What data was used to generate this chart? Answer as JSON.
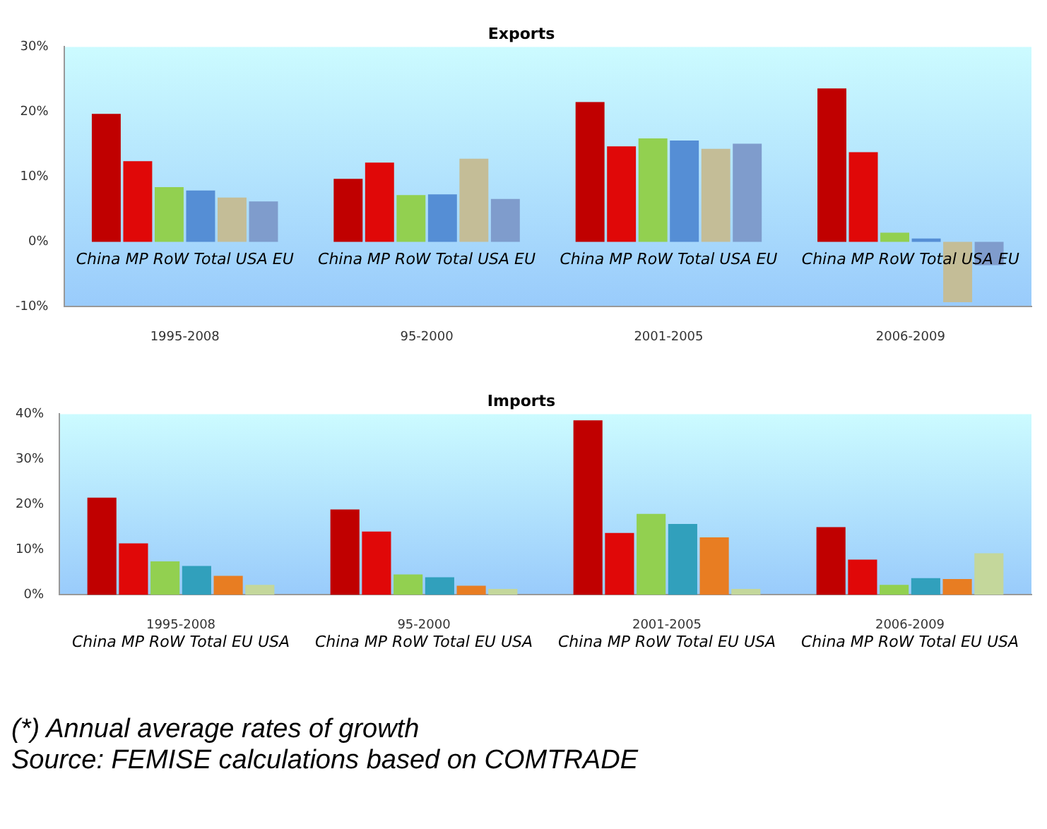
{
  "chart_data": [
    {
      "type": "bar",
      "title": "Exports",
      "categories": [
        "1995-2008",
        "95-2000",
        "2001-2005",
        "2006-2009"
      ],
      "series": [
        {
          "name": "China",
          "color": "#c00000",
          "values": [
            19.7,
            9.7,
            21.5,
            23.6
          ]
        },
        {
          "name": "MP",
          "color": "#e00808",
          "values": [
            12.4,
            12.2,
            14.7,
            13.8
          ]
        },
        {
          "name": "RoW",
          "color": "#92d050",
          "values": [
            8.4,
            7.2,
            15.9,
            1.4
          ]
        },
        {
          "name": "Total",
          "color": "#558ed5",
          "values": [
            7.9,
            7.3,
            15.6,
            0.5
          ]
        },
        {
          "name": "USA",
          "color": "#c4bd97",
          "values": [
            6.8,
            12.8,
            14.3,
            -9.3
          ]
        },
        {
          "name": "EU",
          "color": "#7f9ccc",
          "values": [
            6.2,
            6.6,
            15.1,
            -3.6
          ]
        }
      ],
      "ylim": [
        -10,
        30
      ],
      "yticks": [
        {
          "value": -10,
          "label": "-10%"
        },
        {
          "value": 0,
          "label": "0%"
        },
        {
          "value": 10,
          "label": "10%"
        },
        {
          "value": 20,
          "label": "20%"
        },
        {
          "value": 30,
          "label": "30%"
        }
      ],
      "grid": false,
      "legend": false
    },
    {
      "type": "bar",
      "title": "Imports",
      "categories": [
        "1995-2008",
        "95-2000",
        "2001-2005",
        "2006-2009"
      ],
      "series": [
        {
          "name": "China",
          "color": "#c00000",
          "values": [
            21.5,
            18.9,
            38.6,
            15.0
          ]
        },
        {
          "name": "MP",
          "color": "#e00808",
          "values": [
            11.4,
            14.0,
            13.7,
            7.8
          ]
        },
        {
          "name": "RoW",
          "color": "#92d050",
          "values": [
            7.4,
            4.5,
            17.9,
            2.2
          ]
        },
        {
          "name": "Total",
          "color": "#31a0bc",
          "values": [
            6.4,
            3.9,
            15.7,
            3.7
          ]
        },
        {
          "name": "EU",
          "color": "#e87d22",
          "values": [
            4.2,
            2.0,
            12.7,
            3.5
          ]
        },
        {
          "name": "USA",
          "color": "#c4d79b",
          "values": [
            2.2,
            1.3,
            1.3,
            9.2
          ]
        }
      ],
      "ylim": [
        0,
        40
      ],
      "yticks": [
        {
          "value": 0,
          "label": "0%"
        },
        {
          "value": 10,
          "label": "10%"
        },
        {
          "value": 20,
          "label": "20%"
        },
        {
          "value": 30,
          "label": "30%"
        },
        {
          "value": 40,
          "label": "40%"
        }
      ],
      "grid": false,
      "legend": false,
      "annotations": [
        "(*) Annual average rates of growth",
        "Source: FEMISE calculations based on COMTRADE"
      ]
    }
  ]
}
